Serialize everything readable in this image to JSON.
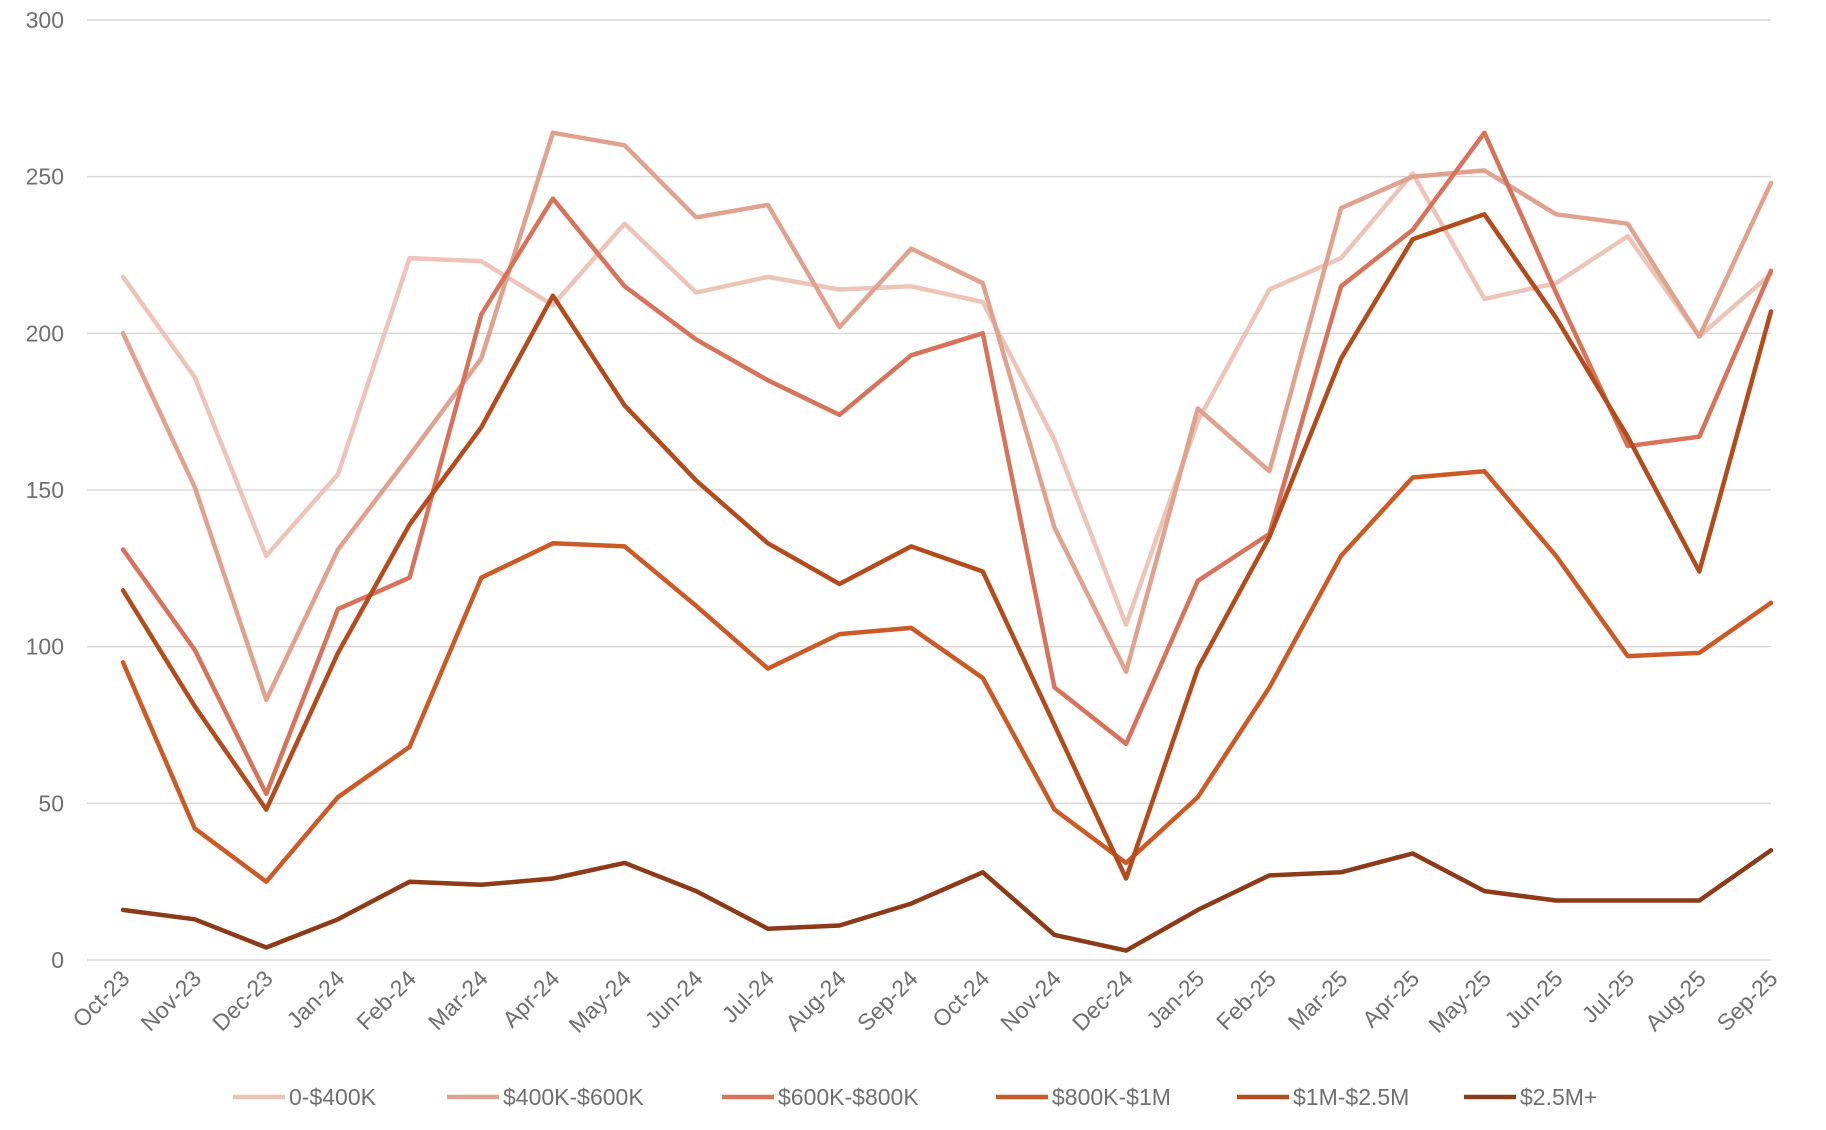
{
  "chart_data": {
    "type": "line",
    "title": "",
    "xlabel": "",
    "ylabel": "",
    "ylim": [
      0,
      300
    ],
    "yticks": [
      0,
      50,
      100,
      150,
      200,
      250,
      300
    ],
    "grid": "horizontal",
    "legend_position": "bottom",
    "categories": [
      "Oct-23",
      "Nov-23",
      "Dec-23",
      "Jan-24",
      "Feb-24",
      "Mar-24",
      "Apr-24",
      "May-24",
      "Jun-24",
      "Jul-24",
      "Aug-24",
      "Sep-24",
      "Oct-24",
      "Nov-24",
      "Dec-24",
      "Jan-25",
      "Feb-25",
      "Mar-25",
      "Apr-25",
      "May-25",
      "Jun-25",
      "Jul-25",
      "Aug-25",
      "Sep-25"
    ],
    "series": [
      {
        "name": "0-$400K",
        "color": "#ecc4b8",
        "values": [
          218,
          186,
          129,
          155,
          224,
          223,
          209,
          235,
          213,
          218,
          214,
          215,
          210,
          166,
          107,
          172,
          214,
          224,
          251,
          211,
          216,
          231,
          199,
          219
        ]
      },
      {
        "name": "$400K-$600K",
        "color": "#e0a18f",
        "values": [
          200,
          151,
          83,
          131,
          161,
          192,
          264,
          260,
          237,
          241,
          202,
          227,
          216,
          138,
          92,
          176,
          156,
          240,
          250,
          252,
          238,
          235,
          199,
          248
        ]
      },
      {
        "name": "$600K-$800K",
        "color": "#d7735b",
        "values": [
          131,
          99,
          53,
          112,
          122,
          206,
          243,
          215,
          198,
          185,
          174,
          193,
          200,
          87,
          69,
          121,
          136,
          215,
          233,
          264,
          213,
          164,
          167,
          220
        ]
      },
      {
        "name": "$800K-$1M",
        "color": "#cc5a26",
        "values": [
          95,
          42,
          25,
          52,
          68,
          122,
          133,
          132,
          113,
          93,
          104,
          106,
          90,
          48,
          31,
          52,
          87,
          129,
          154,
          156,
          129,
          97,
          98,
          114
        ]
      },
      {
        "name": "$1M-$2.5M",
        "color": "#b34b1c",
        "values": [
          118,
          81,
          48,
          98,
          139,
          170,
          212,
          177,
          153,
          133,
          120,
          132,
          124,
          75,
          26,
          93,
          135,
          192,
          230,
          238,
          205,
          167,
          124,
          207
        ]
      },
      {
        "name": "$2.5M+",
        "color": "#8c3a17",
        "values": [
          16,
          13,
          4,
          13,
          25,
          24,
          26,
          31,
          22,
          10,
          11,
          18,
          28,
          8,
          3,
          16,
          27,
          28,
          34,
          22,
          19,
          19,
          19,
          35
        ]
      }
    ]
  }
}
